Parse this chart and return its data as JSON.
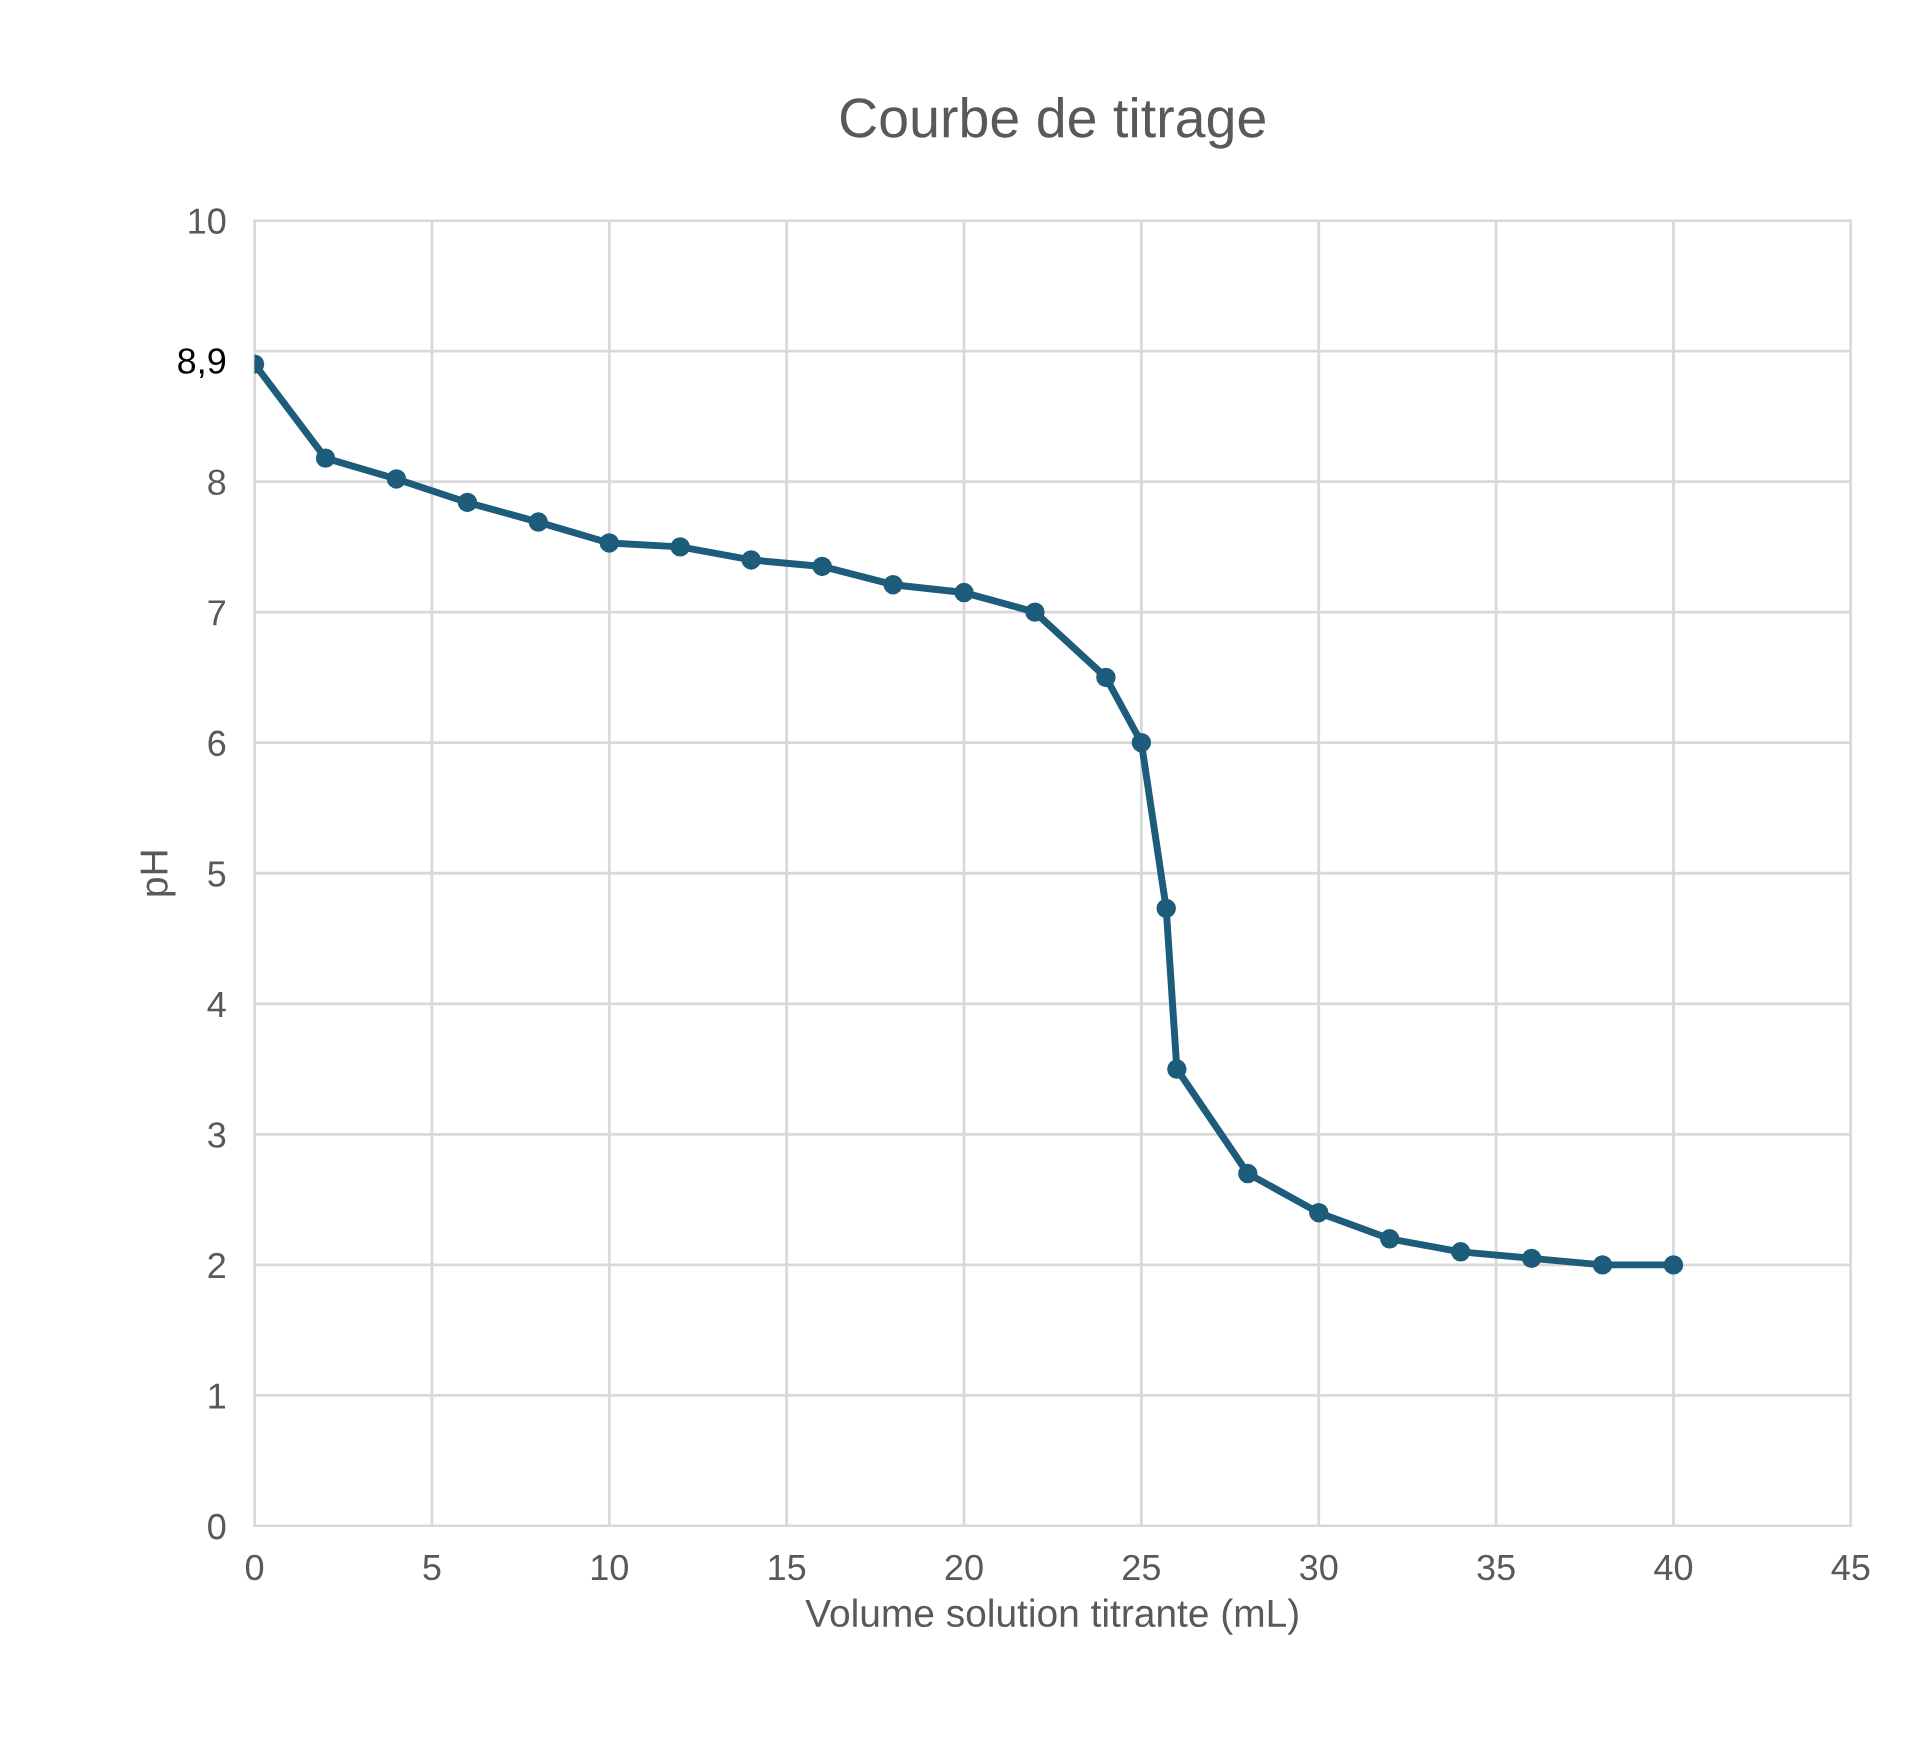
{
  "chart_data": {
    "type": "line",
    "title": "Courbe de titrage",
    "xlabel": "Volume solution titrante (mL)",
    "ylabel": "pH",
    "series": [
      {
        "color": "#1d5c7a",
        "x": [
          0,
          2,
          4,
          6,
          8,
          10,
          12,
          14,
          16,
          18,
          20,
          22,
          24,
          25,
          25.7,
          26,
          28,
          30,
          32,
          34,
          36,
          38,
          40
        ],
        "values": [
          8.9,
          8.18,
          8.02,
          7.84,
          7.69,
          7.53,
          7.5,
          7.4,
          7.35,
          7.21,
          7.15,
          7.0,
          6.5,
          6.0,
          4.73,
          3.5,
          2.7,
          2.4,
          2.2,
          2.1,
          2.05,
          2.0,
          2.0
        ]
      }
    ],
    "xlim": [
      0,
      45
    ],
    "xticks": [
      0,
      5,
      10,
      15,
      20,
      25,
      30,
      35,
      40,
      45
    ],
    "ylim": [
      0,
      10
    ],
    "yticks": [
      0,
      1,
      2,
      3,
      4,
      5,
      6,
      7,
      8,
      {
        "value": 9,
        "label": null
      },
      10
    ],
    "annotations": [
      {
        "text": "8,9",
        "x": 0,
        "y": 8.9
      }
    ],
    "grid": true,
    "marker": "circle",
    "line_style": "solid"
  }
}
